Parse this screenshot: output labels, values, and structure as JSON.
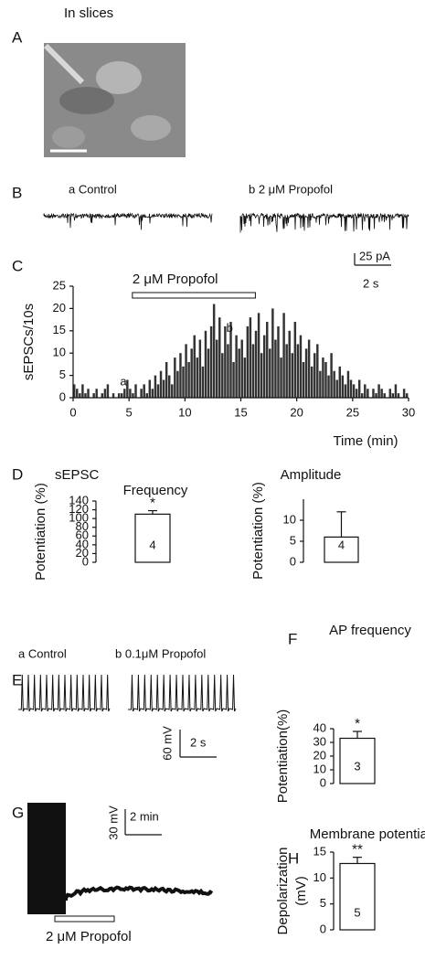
{
  "panels": {
    "A": {
      "letter": "A",
      "caption": "In slices"
    },
    "B": {
      "letter": "B",
      "trace_a": "a   Control",
      "trace_b": "b   2 μM Propofol",
      "scale_y": "25 pA",
      "scale_x": "2 s"
    },
    "C": {
      "letter": "C"
    },
    "D": {
      "letter": "D",
      "caption": "sEPSC"
    },
    "E": {
      "letter": "E",
      "trace_a": "a  Control",
      "trace_b": "b  0.1μM Propofol",
      "scale_y": "60 mV",
      "scale_x": "2 s"
    },
    "F": {
      "letter": "F"
    },
    "G": {
      "letter": "G",
      "scale_y": "30 mV",
      "scale_x": "2 min",
      "drug": "2 μM Propofol"
    },
    "H": {
      "letter": "H"
    }
  },
  "chart_data": [
    {
      "type": "bar",
      "ylabel": "sEPSCs/10s",
      "xlabel": "Time (min)",
      "color": "#333333",
      "x": [
        0,
        0.25,
        0.5,
        0.75,
        1,
        1.25,
        1.5,
        1.75,
        2,
        2.25,
        2.5,
        2.75,
        3,
        3.25,
        3.5,
        3.75,
        4,
        4.25,
        4.5,
        4.75,
        5,
        5.25,
        5.5,
        5.75,
        6,
        6.25,
        6.5,
        6.75,
        7,
        7.25,
        7.5,
        7.75,
        8,
        8.25,
        8.5,
        8.75,
        9,
        9.25,
        9.5,
        9.75,
        10,
        10.25,
        10.5,
        10.75,
        11,
        11.25,
        11.5,
        11.75,
        12,
        12.25,
        12.5,
        12.75,
        13,
        13.25,
        13.5,
        13.75,
        14,
        14.25,
        14.5,
        14.75,
        15,
        15.25,
        15.5,
        15.75,
        16,
        16.25,
        16.5,
        16.75,
        17,
        17.25,
        17.5,
        17.75,
        18,
        18.25,
        18.5,
        18.75,
        19,
        19.25,
        19.5,
        19.75,
        20,
        20.25,
        20.5,
        20.75,
        21,
        21.25,
        21.5,
        21.75,
        22,
        22.25,
        22.5,
        22.75,
        23,
        23.25,
        23.5,
        23.75,
        24,
        24.25,
        24.5,
        24.75,
        25,
        25.25,
        25.5,
        25.75,
        26,
        26.25,
        26.5,
        26.75,
        27,
        27.25,
        27.5,
        27.75,
        28,
        28.25,
        28.5,
        28.75,
        29,
        29.25,
        29.5,
        29.75
      ],
      "values": [
        3,
        2,
        1,
        3,
        1,
        2,
        0,
        1,
        2,
        0,
        1,
        2,
        3,
        0,
        1,
        0,
        1,
        1,
        2,
        4,
        2,
        1,
        3,
        0,
        2,
        3,
        1,
        4,
        2,
        5,
        3,
        6,
        4,
        8,
        5,
        3,
        9,
        6,
        10,
        7,
        12,
        8,
        11,
        14,
        9,
        13,
        7,
        15,
        11,
        16,
        21,
        13,
        18,
        10,
        16,
        12,
        17,
        8,
        14,
        11,
        13,
        9,
        16,
        18,
        12,
        15,
        19,
        10,
        14,
        17,
        11,
        20,
        13,
        16,
        9,
        19,
        12,
        15,
        10,
        17,
        12,
        14,
        8,
        11,
        13,
        7,
        10,
        12,
        6,
        9,
        8,
        5,
        10,
        6,
        4,
        7,
        5,
        3,
        6,
        4,
        3,
        2,
        4,
        1,
        3,
        2,
        0,
        2,
        1,
        3,
        2,
        1,
        0,
        2,
        1,
        3,
        1,
        0,
        2,
        1
      ],
      "xlim": [
        0,
        30
      ],
      "xticks": [
        0,
        5,
        10,
        15,
        20,
        25,
        30
      ],
      "ylim": [
        0,
        25
      ],
      "yticks": [
        0,
        5,
        10,
        15,
        20,
        25
      ],
      "annotations": [
        "a",
        "b"
      ],
      "drug": {
        "label": "2 μM Propofol",
        "start": 5.3,
        "end": 16.3
      }
    },
    {
      "type": "bar",
      "title": "Frequency",
      "ylabel": [
        "Potentiation (%)"
      ],
      "values": [
        110
      ],
      "errors": [
        8
      ],
      "n_labels": [
        "4"
      ],
      "significance": [
        "*"
      ],
      "ylim": [
        0,
        140
      ],
      "yticks": [
        0,
        20,
        40,
        60,
        80,
        100,
        120,
        140
      ],
      "color": "#ffffff"
    },
    {
      "type": "bar",
      "title": "Amplitude",
      "ylabel": [
        "Potentiation (%)"
      ],
      "values": [
        6
      ],
      "errors": [
        6
      ],
      "n_labels": [
        "4"
      ],
      "ylim": [
        0,
        15
      ],
      "yticks": [
        0,
        5,
        10
      ],
      "color": "#ffffff"
    },
    {
      "type": "bar",
      "title": "AP frequency",
      "ylabel": [
        "Potentiation(%)"
      ],
      "values": [
        33
      ],
      "errors": [
        5
      ],
      "n_labels": [
        "3"
      ],
      "significance": [
        "*"
      ],
      "ylim": [
        0,
        40
      ],
      "yticks": [
        0,
        10,
        20,
        30,
        40
      ],
      "color": "#ffffff"
    },
    {
      "type": "bar",
      "title": "Membrane potential",
      "ylabel": [
        "Depolarization",
        "(mV)"
      ],
      "values": [
        12.8
      ],
      "errors": [
        1.2
      ],
      "n_labels": [
        "5"
      ],
      "significance": [
        "**"
      ],
      "ylim": [
        0,
        15
      ],
      "yticks": [
        0,
        5,
        10,
        15
      ],
      "color": "#ffffff"
    }
  ]
}
